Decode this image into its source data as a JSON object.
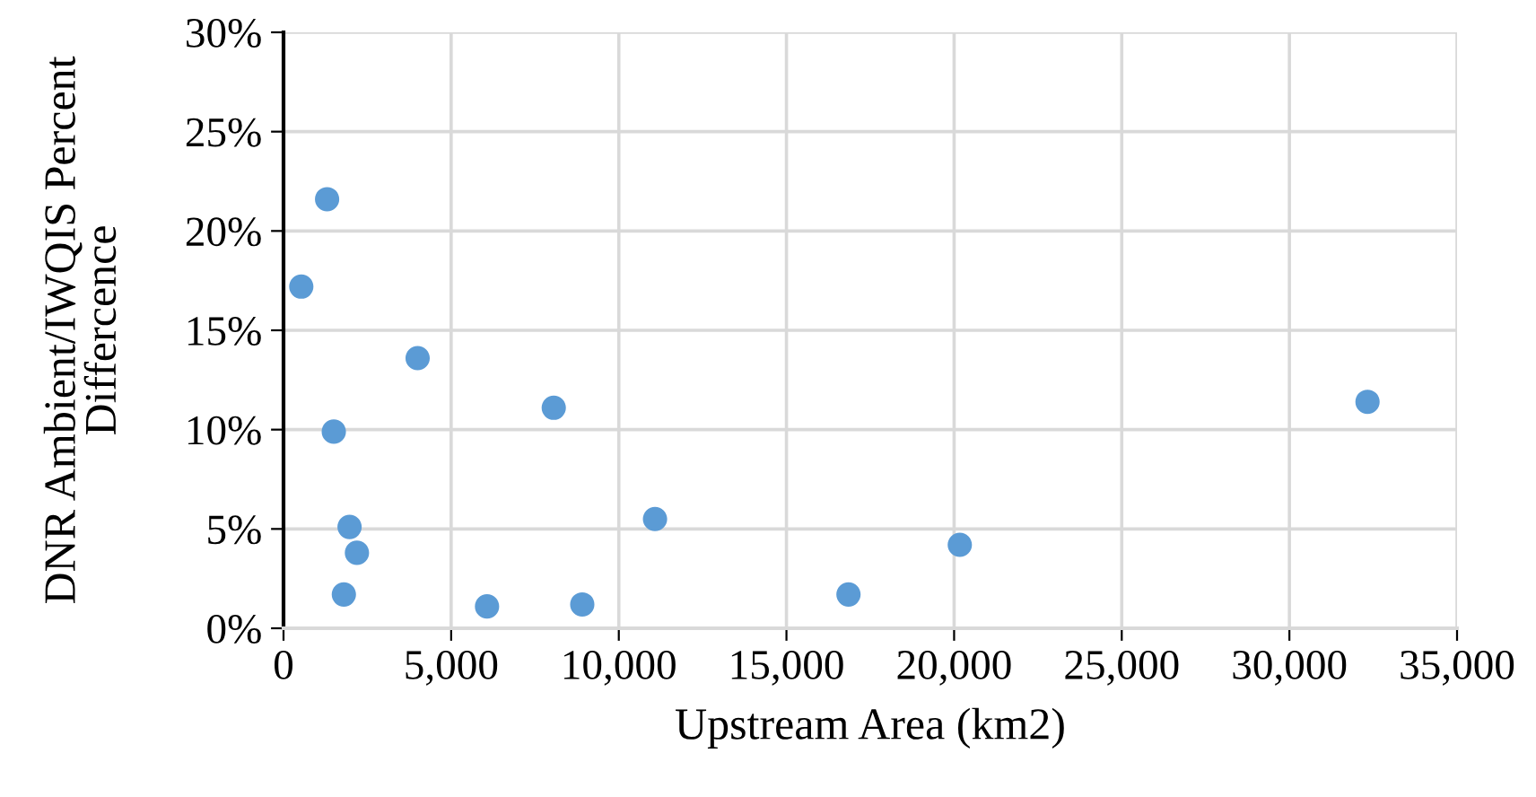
{
  "chart_data": {
    "type": "scatter",
    "xlabel": "Upstream Area (km2)",
    "ylabel": "DNR Ambient/IWQIS Percent Differcence",
    "x": [
      530,
      1300,
      1500,
      1970,
      2190,
      1800,
      4000,
      6070,
      8060,
      8910,
      11080,
      16850,
      20170,
      32330
    ],
    "series": [
      {
        "color": "#5b9bd5",
        "values": [
          17.2,
          21.6,
          9.9,
          5.1,
          3.8,
          1.7,
          13.6,
          1.1,
          11.1,
          1.2,
          5.5,
          1.7,
          4.2,
          11.4
        ]
      }
    ],
    "xlim": [
      0,
      35000
    ],
    "xticks": [
      {
        "value": 0,
        "label": "0"
      },
      {
        "value": 5000,
        "label": "5,000"
      },
      {
        "value": 10000,
        "label": "10,000"
      },
      {
        "value": 15000,
        "label": "15,000"
      },
      {
        "value": 20000,
        "label": "20,000"
      },
      {
        "value": 25000,
        "label": "25,000"
      },
      {
        "value": 30000,
        "label": "30,000"
      },
      {
        "value": 35000,
        "label": "35,000"
      }
    ],
    "ylim": [
      0,
      30
    ],
    "yticks": [
      {
        "value": 0,
        "label": "0%"
      },
      {
        "value": 5,
        "label": "5%"
      },
      {
        "value": 10,
        "label": "10%"
      },
      {
        "value": 15,
        "label": "15%"
      },
      {
        "value": 20,
        "label": "20%"
      },
      {
        "value": 25,
        "label": "25%"
      },
      {
        "value": 30,
        "label": "30%"
      }
    ],
    "grid": true,
    "marker": "circle",
    "legend": false
  }
}
